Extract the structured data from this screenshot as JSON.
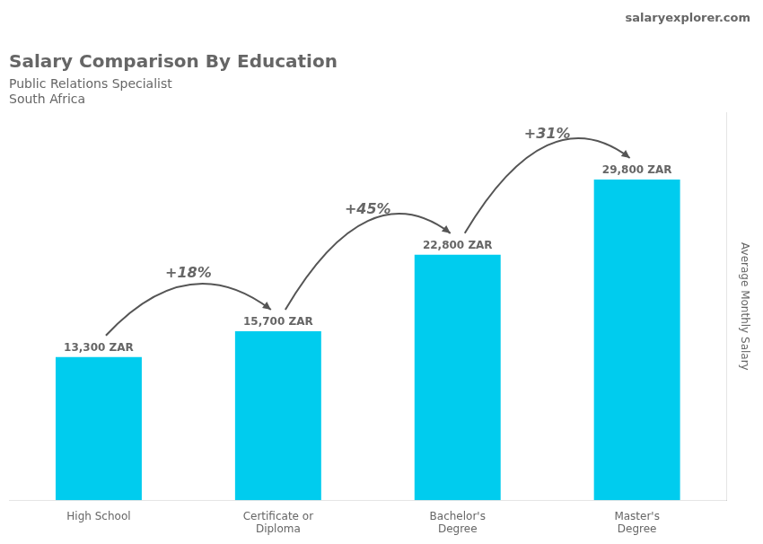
{
  "chart_data": {
    "type": "bar",
    "title": "Salary Comparison By Education",
    "subtitle": [
      "Public Relations Specialist",
      "South Africa"
    ],
    "source": "salaryexplorer.com",
    "ylabel": "Average Monthly Salary",
    "categories": [
      "High School",
      "Certificate or\nDiploma",
      "Bachelor's\nDegree",
      "Master's\nDegree"
    ],
    "values": [
      13300,
      15700,
      22800,
      29800
    ],
    "value_labels": [
      "13,300 ZAR",
      "15,700 ZAR",
      "22,800 ZAR",
      "29,800 ZAR"
    ],
    "data_labels": true,
    "annotations": [
      "+18%",
      "+45%",
      "+31%"
    ],
    "color": "#00ccee",
    "ylim": [
      0,
      36000
    ],
    "yticks": [],
    "tick_labels": "x",
    "grid": false
  }
}
